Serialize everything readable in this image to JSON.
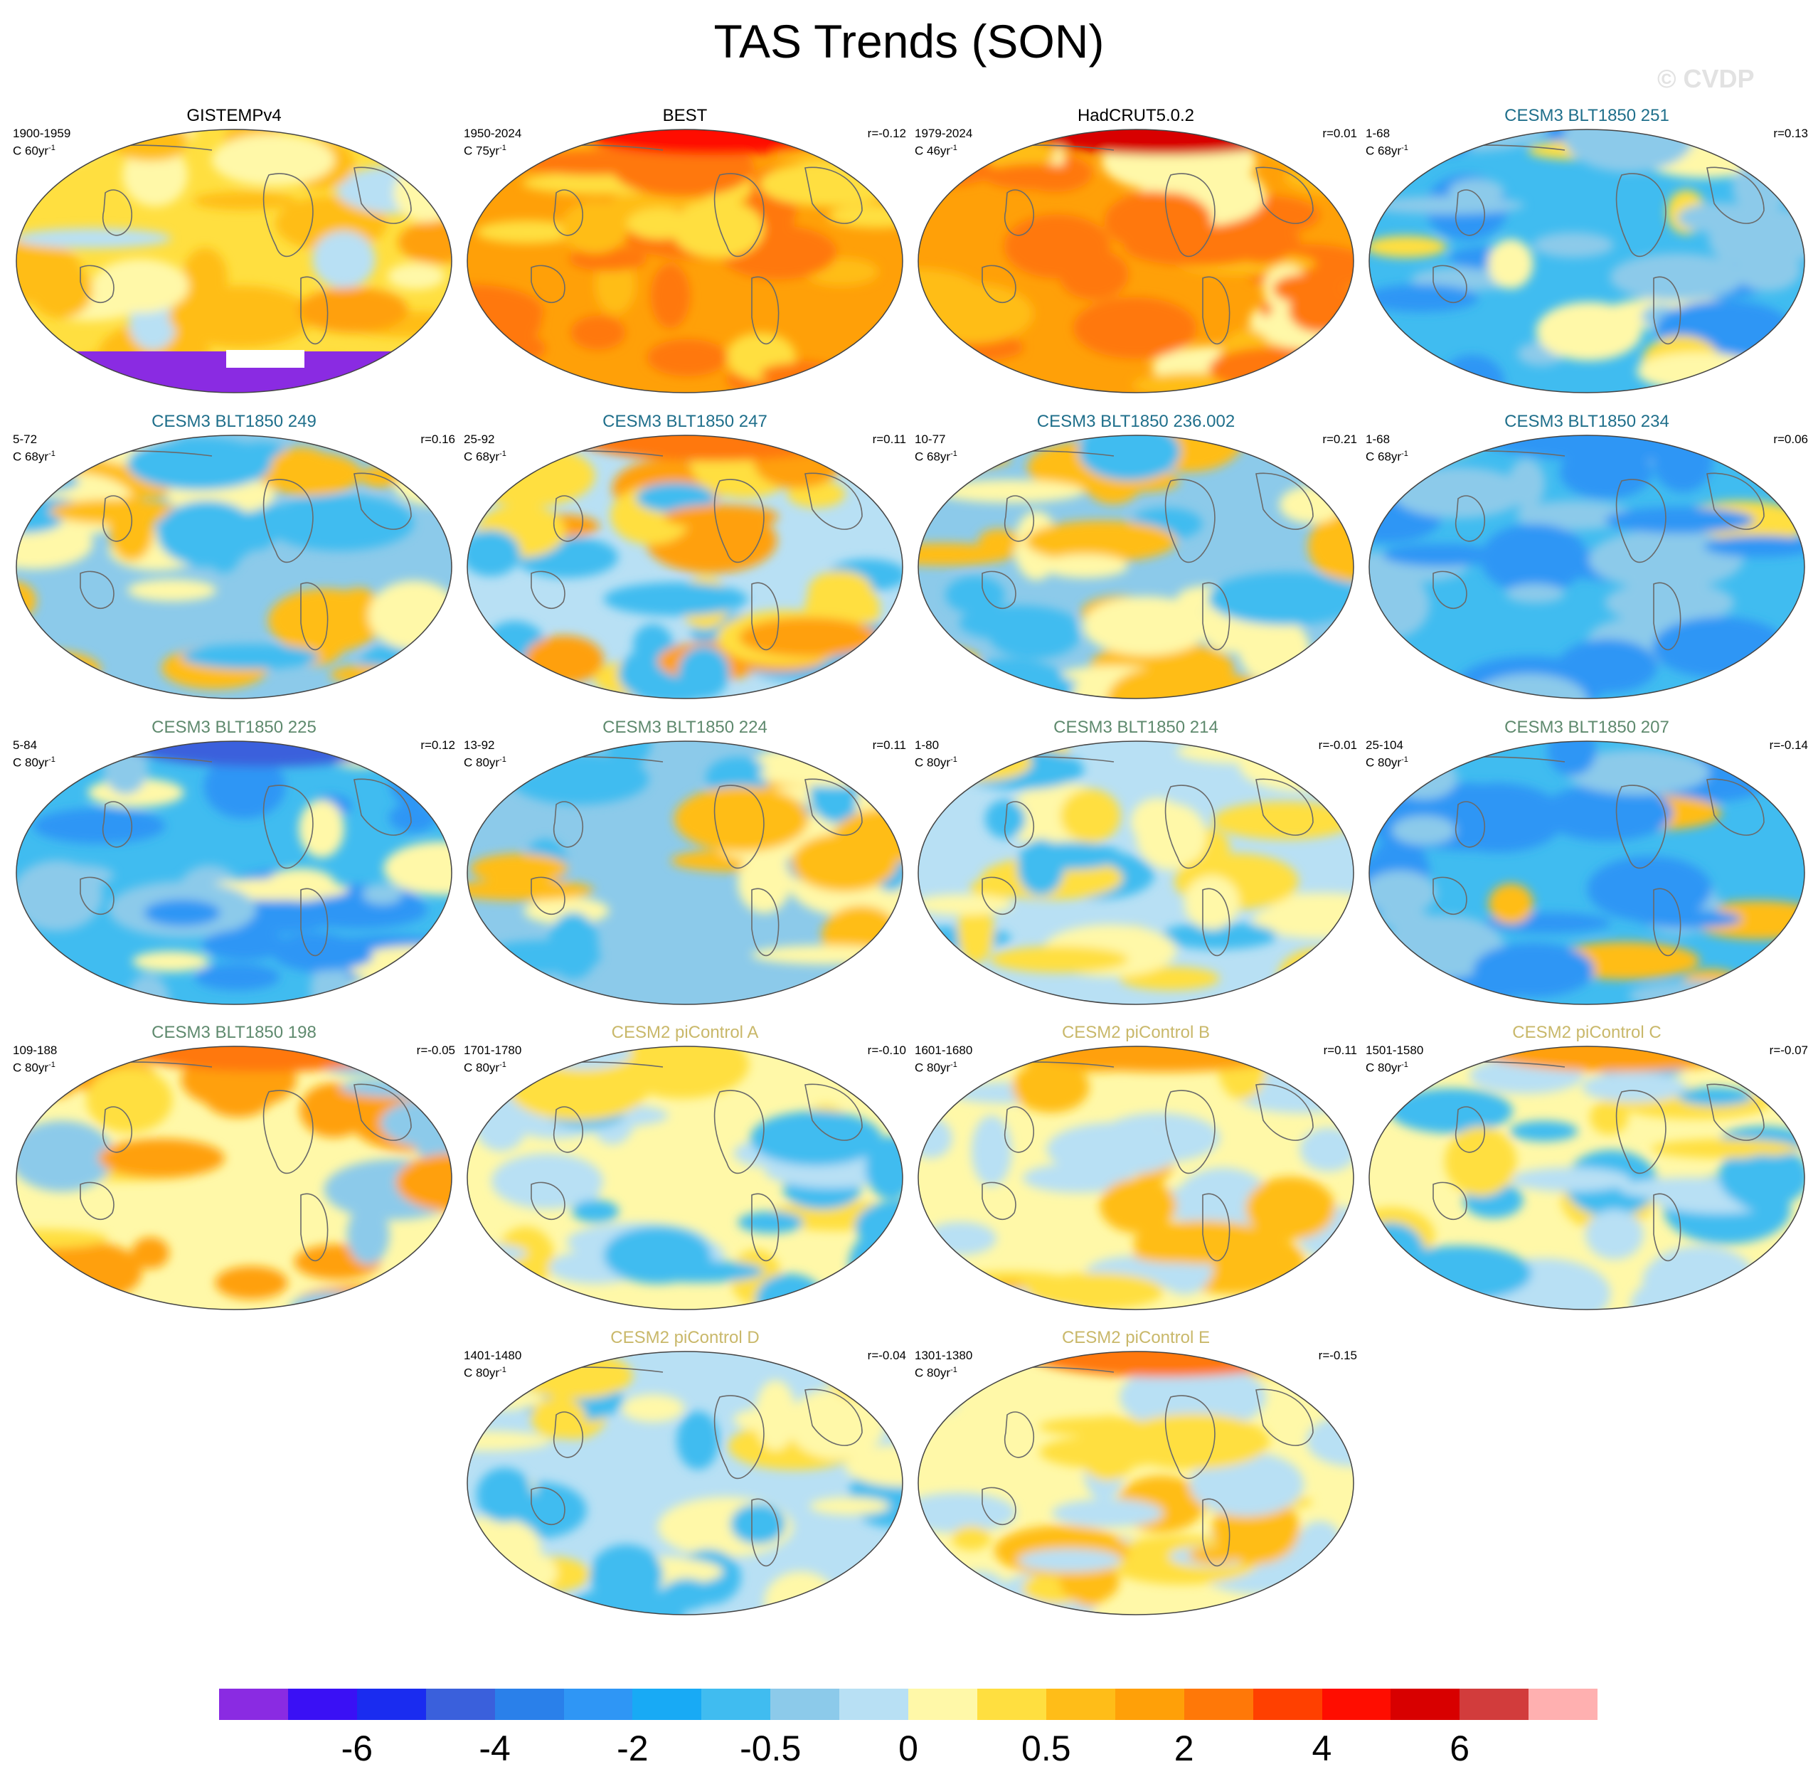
{
  "figure": {
    "title": "TAS Trends (SON)",
    "watermark": "© CVDP"
  },
  "panels": [
    {
      "title": "GISTEMPv4",
      "title_color": "#000000",
      "period": "1900-1959",
      "units_prefix": "C 60yr",
      "units_exp": "-1",
      "corr": ""
    },
    {
      "title": "BEST",
      "title_color": "#000000",
      "period": "1950-2024",
      "units_prefix": "C 75yr",
      "units_exp": "-1",
      "corr": "r=-0.12"
    },
    {
      "title": "HadCRUT5.0.2",
      "title_color": "#000000",
      "period": "1979-2024",
      "units_prefix": "C 46yr",
      "units_exp": "-1",
      "corr": "r=0.01"
    },
    {
      "title": "CESM3 BLT1850 251",
      "title_color": "#1f6f8b",
      "period": "1-68",
      "units_prefix": "C 68yr",
      "units_exp": "-1",
      "corr": "r=0.13"
    },
    {
      "title": "CESM3 BLT1850 249",
      "title_color": "#1f6f8b",
      "period": "5-72",
      "units_prefix": "C 68yr",
      "units_exp": "-1",
      "corr": "r=0.16"
    },
    {
      "title": "CESM3 BLT1850 247",
      "title_color": "#1f6f8b",
      "period": "25-92",
      "units_prefix": "C 68yr",
      "units_exp": "-1",
      "corr": "r=0.11"
    },
    {
      "title": "CESM3 BLT1850 236.002",
      "title_color": "#1f6f8b",
      "period": "10-77",
      "units_prefix": "C 68yr",
      "units_exp": "-1",
      "corr": "r=0.21"
    },
    {
      "title": "CESM3 BLT1850 234",
      "title_color": "#1f6f8b",
      "period": "1-68",
      "units_prefix": "C 68yr",
      "units_exp": "-1",
      "corr": "r=0.06"
    },
    {
      "title": "CESM3 BLT1850 225",
      "title_color": "#5f8a6e",
      "period": "5-84",
      "units_prefix": "C 80yr",
      "units_exp": "-1",
      "corr": "r=0.12"
    },
    {
      "title": "CESM3 BLT1850 224",
      "title_color": "#5f8a6e",
      "period": "13-92",
      "units_prefix": "C 80yr",
      "units_exp": "-1",
      "corr": "r=0.11"
    },
    {
      "title": "CESM3 BLT1850 214",
      "title_color": "#5f8a6e",
      "period": "1-80",
      "units_prefix": "C 80yr",
      "units_exp": "-1",
      "corr": "r=-0.01"
    },
    {
      "title": "CESM3 BLT1850 207",
      "title_color": "#5f8a6e",
      "period": "25-104",
      "units_prefix": "C 80yr",
      "units_exp": "-1",
      "corr": "r=-0.14"
    },
    {
      "title": "CESM3 BLT1850 198",
      "title_color": "#5f8a6e",
      "period": "109-188",
      "units_prefix": "C 80yr",
      "units_exp": "-1",
      "corr": "r=-0.05"
    },
    {
      "title": "CESM2 piControl A",
      "title_color": "#c9b86a",
      "period": "1701-1780",
      "units_prefix": "C 80yr",
      "units_exp": "-1",
      "corr": "r=-0.10"
    },
    {
      "title": "CESM2 piControl B",
      "title_color": "#c9b86a",
      "period": "1601-1680",
      "units_prefix": "C 80yr",
      "units_exp": "-1",
      "corr": "r=0.11"
    },
    {
      "title": "CESM2 piControl C",
      "title_color": "#c9b86a",
      "period": "1501-1580",
      "units_prefix": "C 80yr",
      "units_exp": "-1",
      "corr": "r=-0.07"
    },
    {
      "title": "CESM2 piControl D",
      "title_color": "#c9b86a",
      "period": "1401-1480",
      "units_prefix": "C 80yr",
      "units_exp": "-1",
      "corr": "r=-0.04"
    },
    {
      "title": "CESM2 piControl E",
      "title_color": "#c9b86a",
      "period": "1301-1380",
      "units_prefix": "C 80yr",
      "units_exp": "-1",
      "corr": "r=-0.15"
    }
  ],
  "colorbar": {
    "colors": [
      "#8a2be2",
      "#3a10f5",
      "#1a2cf0",
      "#3a60dc",
      "#2a80ea",
      "#2f96f5",
      "#18aaf5",
      "#40bcf0",
      "#8ccaea",
      "#b8e0f4",
      "#fff8a8",
      "#ffdf40",
      "#ffbd18",
      "#ffa008",
      "#ff7808",
      "#ff4000",
      "#ff0d00",
      "#d80000",
      "#d23c3c",
      "#ffb0b0"
    ],
    "labels": [
      {
        "text": "-6",
        "boundary": 2
      },
      {
        "text": "-4",
        "boundary": 4
      },
      {
        "text": "-2",
        "boundary": 6
      },
      {
        "text": "-0.5",
        "boundary": 8
      },
      {
        "text": "0",
        "boundary": 10
      },
      {
        "text": "0.5",
        "boundary": 12
      },
      {
        "text": "2",
        "boundary": 14
      },
      {
        "text": "4",
        "boundary": 16
      },
      {
        "text": "6",
        "boundary": 18
      }
    ]
  }
}
